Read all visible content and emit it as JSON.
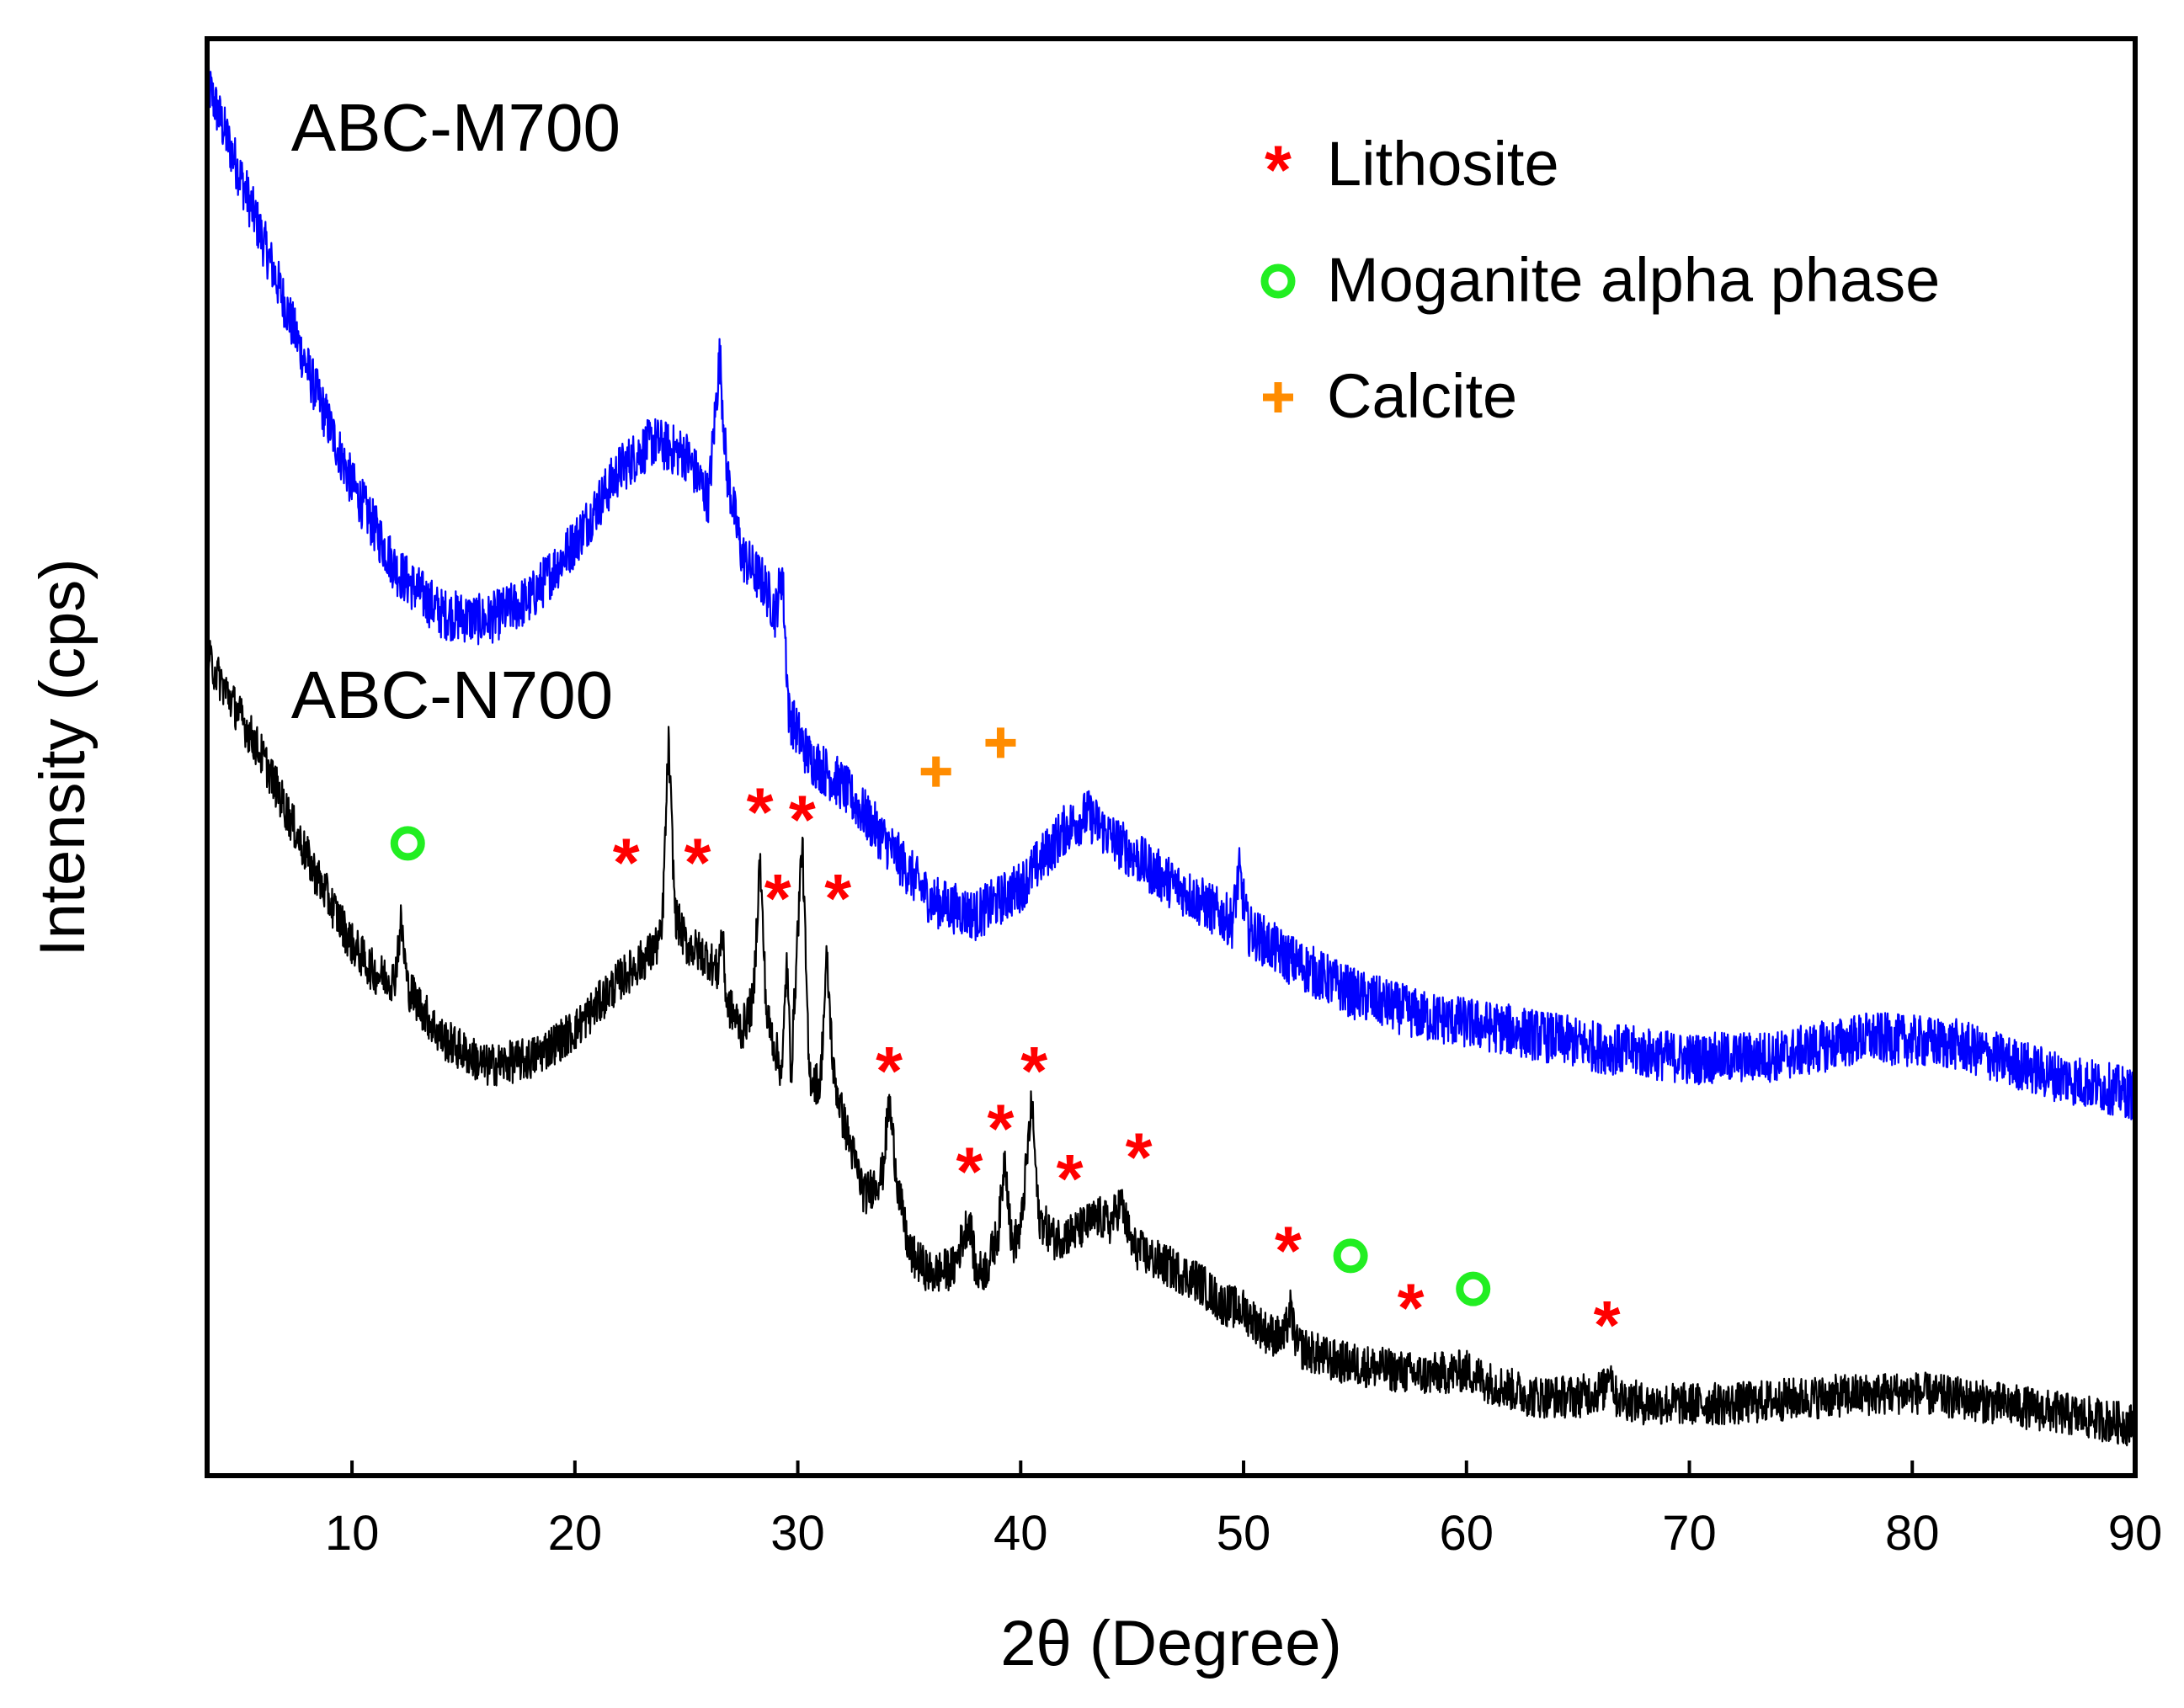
{
  "chart_data": {
    "type": "line",
    "xlabel": "2θ (Degree)",
    "ylabel": "Intensity (cps)",
    "xlim": [
      3.5,
      90
    ],
    "ylim": [
      0,
      100
    ],
    "xticks": [
      10,
      20,
      30,
      40,
      50,
      60,
      70,
      80,
      90
    ],
    "grid": false,
    "series": [
      {
        "name": "ABC-M700",
        "color": "#0000ff",
        "noise": 1.8,
        "points": [
          [
            3.5,
            97
          ],
          [
            6,
            86
          ],
          [
            8,
            77
          ],
          [
            10,
            69
          ],
          [
            12,
            63
          ],
          [
            14,
            60
          ],
          [
            16,
            59.5
          ],
          [
            18,
            61
          ],
          [
            20,
            65
          ],
          [
            22,
            70
          ],
          [
            23.5,
            72
          ],
          [
            25,
            71
          ],
          [
            26,
            68
          ],
          [
            26.5,
            78
          ],
          [
            26.8,
            70
          ],
          [
            27.5,
            64
          ],
          [
            28.5,
            62
          ],
          [
            29,
            60
          ],
          [
            29.3,
            63
          ],
          [
            29.6,
            53
          ],
          [
            30.5,
            50
          ],
          [
            32,
            48
          ],
          [
            34,
            44
          ],
          [
            36,
            40
          ],
          [
            38,
            39
          ],
          [
            40,
            41
          ],
          [
            42,
            45
          ],
          [
            43,
            46
          ],
          [
            44,
            44.5
          ],
          [
            46,
            42
          ],
          [
            48,
            40
          ],
          [
            49.5,
            38.5
          ],
          [
            49.8,
            42
          ],
          [
            50.2,
            38
          ],
          [
            52,
            36
          ],
          [
            55,
            33.5
          ],
          [
            58,
            32
          ],
          [
            62,
            31
          ],
          [
            66,
            29.8
          ],
          [
            70,
            29
          ],
          [
            74,
            29.2
          ],
          [
            78,
            30.5
          ],
          [
            82,
            30
          ],
          [
            86,
            28
          ],
          [
            90,
            26.5
          ]
        ]
      },
      {
        "name": "ABC-N700",
        "color": "#000000",
        "noise": 1.5,
        "points": [
          [
            3.5,
            57
          ],
          [
            6,
            50
          ],
          [
            8,
            43
          ],
          [
            10,
            37
          ],
          [
            11,
            35
          ],
          [
            11.9,
            34.5
          ],
          [
            12.2,
            38.5
          ],
          [
            12.5,
            34
          ],
          [
            14,
            30.5
          ],
          [
            16,
            28.5
          ],
          [
            18,
            29
          ],
          [
            20,
            31
          ],
          [
            22,
            34.5
          ],
          [
            23.5,
            36.5
          ],
          [
            23.9,
            37.5
          ],
          [
            24.2,
            51
          ],
          [
            24.5,
            39
          ],
          [
            25,
            37
          ],
          [
            26,
            36
          ],
          [
            26.4,
            35
          ],
          [
            26.6,
            38
          ],
          [
            26.8,
            33
          ],
          [
            27.5,
            31
          ],
          [
            28,
            33
          ],
          [
            28.3,
            43
          ],
          [
            28.6,
            32
          ],
          [
            29.3,
            28
          ],
          [
            29.5,
            36
          ],
          [
            29.7,
            28
          ],
          [
            30,
            38
          ],
          [
            30.2,
            44.5
          ],
          [
            30.5,
            28
          ],
          [
            31,
            27
          ],
          [
            31.3,
            36
          ],
          [
            31.6,
            28
          ],
          [
            32,
            25
          ],
          [
            33,
            19.5
          ],
          [
            33.8,
            21
          ],
          [
            34.1,
            26
          ],
          [
            34.5,
            20
          ],
          [
            35,
            15.5
          ],
          [
            36,
            14
          ],
          [
            37,
            14.5
          ],
          [
            37.7,
            18
          ],
          [
            38,
            14
          ],
          [
            38.5,
            14.5
          ],
          [
            39,
            17
          ],
          [
            39.3,
            22.5
          ],
          [
            39.6,
            16
          ],
          [
            40,
            17
          ],
          [
            40.5,
            26
          ],
          [
            40.8,
            18
          ],
          [
            41.5,
            16.5
          ],
          [
            42.5,
            17
          ],
          [
            43.5,
            18
          ],
          [
            44,
            17.5
          ],
          [
            44.5,
            19
          ],
          [
            45,
            16
          ],
          [
            46,
            15
          ],
          [
            48,
            13.5
          ],
          [
            49,
            12
          ],
          [
            50,
            11.5
          ],
          [
            51,
            10
          ],
          [
            51.8,
            9.5
          ],
          [
            52.1,
            11.5
          ],
          [
            52.4,
            9
          ],
          [
            54,
            8
          ],
          [
            56,
            7.5
          ],
          [
            58,
            7
          ],
          [
            60,
            7.3
          ],
          [
            61,
            6.5
          ],
          [
            63,
            5.5
          ],
          [
            65,
            5.5
          ],
          [
            66.2,
            6
          ],
          [
            66.4,
            7.8
          ],
          [
            66.7,
            5.5
          ],
          [
            68,
            5
          ],
          [
            72,
            5
          ],
          [
            76,
            5.5
          ],
          [
            80,
            5.8
          ],
          [
            84,
            5
          ],
          [
            88,
            4
          ],
          [
            90,
            3.5
          ]
        ]
      }
    ],
    "series_labels": [
      {
        "text": "ABC-M700",
        "at": [
          5,
          95.5
        ]
      },
      {
        "text": "ABC-N700",
        "at": [
          5,
          56
        ]
      }
    ],
    "annotations": [
      {
        "kind": "lithosite",
        "x": 22.3,
        "y": 43
      },
      {
        "kind": "lithosite",
        "x": 25.5,
        "y": 43
      },
      {
        "kind": "lithosite",
        "x": 28.3,
        "y": 46.5
      },
      {
        "kind": "lithosite",
        "x": 30.2,
        "y": 46
      },
      {
        "kind": "lithosite",
        "x": 29.1,
        "y": 40.5
      },
      {
        "kind": "lithosite",
        "x": 31.8,
        "y": 40.5
      },
      {
        "kind": "lithosite",
        "x": 34.1,
        "y": 28.5
      },
      {
        "kind": "lithosite",
        "x": 37.7,
        "y": 21.5
      },
      {
        "kind": "lithosite",
        "x": 39.1,
        "y": 24.5
      },
      {
        "kind": "lithosite",
        "x": 40.6,
        "y": 28.5
      },
      {
        "kind": "lithosite",
        "x": 42.2,
        "y": 21
      },
      {
        "kind": "lithosite",
        "x": 45.3,
        "y": 22.5
      },
      {
        "kind": "lithosite",
        "x": 52,
        "y": 16
      },
      {
        "kind": "lithosite",
        "x": 57.5,
        "y": 12
      },
      {
        "kind": "lithosite",
        "x": 66.3,
        "y": 10.8
      },
      {
        "kind": "moganite",
        "x": 12.5,
        "y": 44
      },
      {
        "kind": "moganite",
        "x": 54.8,
        "y": 15.3
      },
      {
        "kind": "moganite",
        "x": 60.3,
        "y": 13
      },
      {
        "kind": "calcite",
        "x": 36.2,
        "y": 49
      },
      {
        "kind": "calcite",
        "x": 39.1,
        "y": 51
      }
    ],
    "legend": {
      "placement": "top-right",
      "entries": [
        {
          "kind": "lithosite",
          "symbol": "*",
          "label": "Lithosite",
          "color": "#ff0000"
        },
        {
          "kind": "moganite",
          "symbol": "o",
          "label": "Moganite alpha phase",
          "color": "#22ee22"
        },
        {
          "kind": "calcite",
          "symbol": "+",
          "label": "Calcite",
          "color": "#ff8c00"
        }
      ]
    }
  }
}
